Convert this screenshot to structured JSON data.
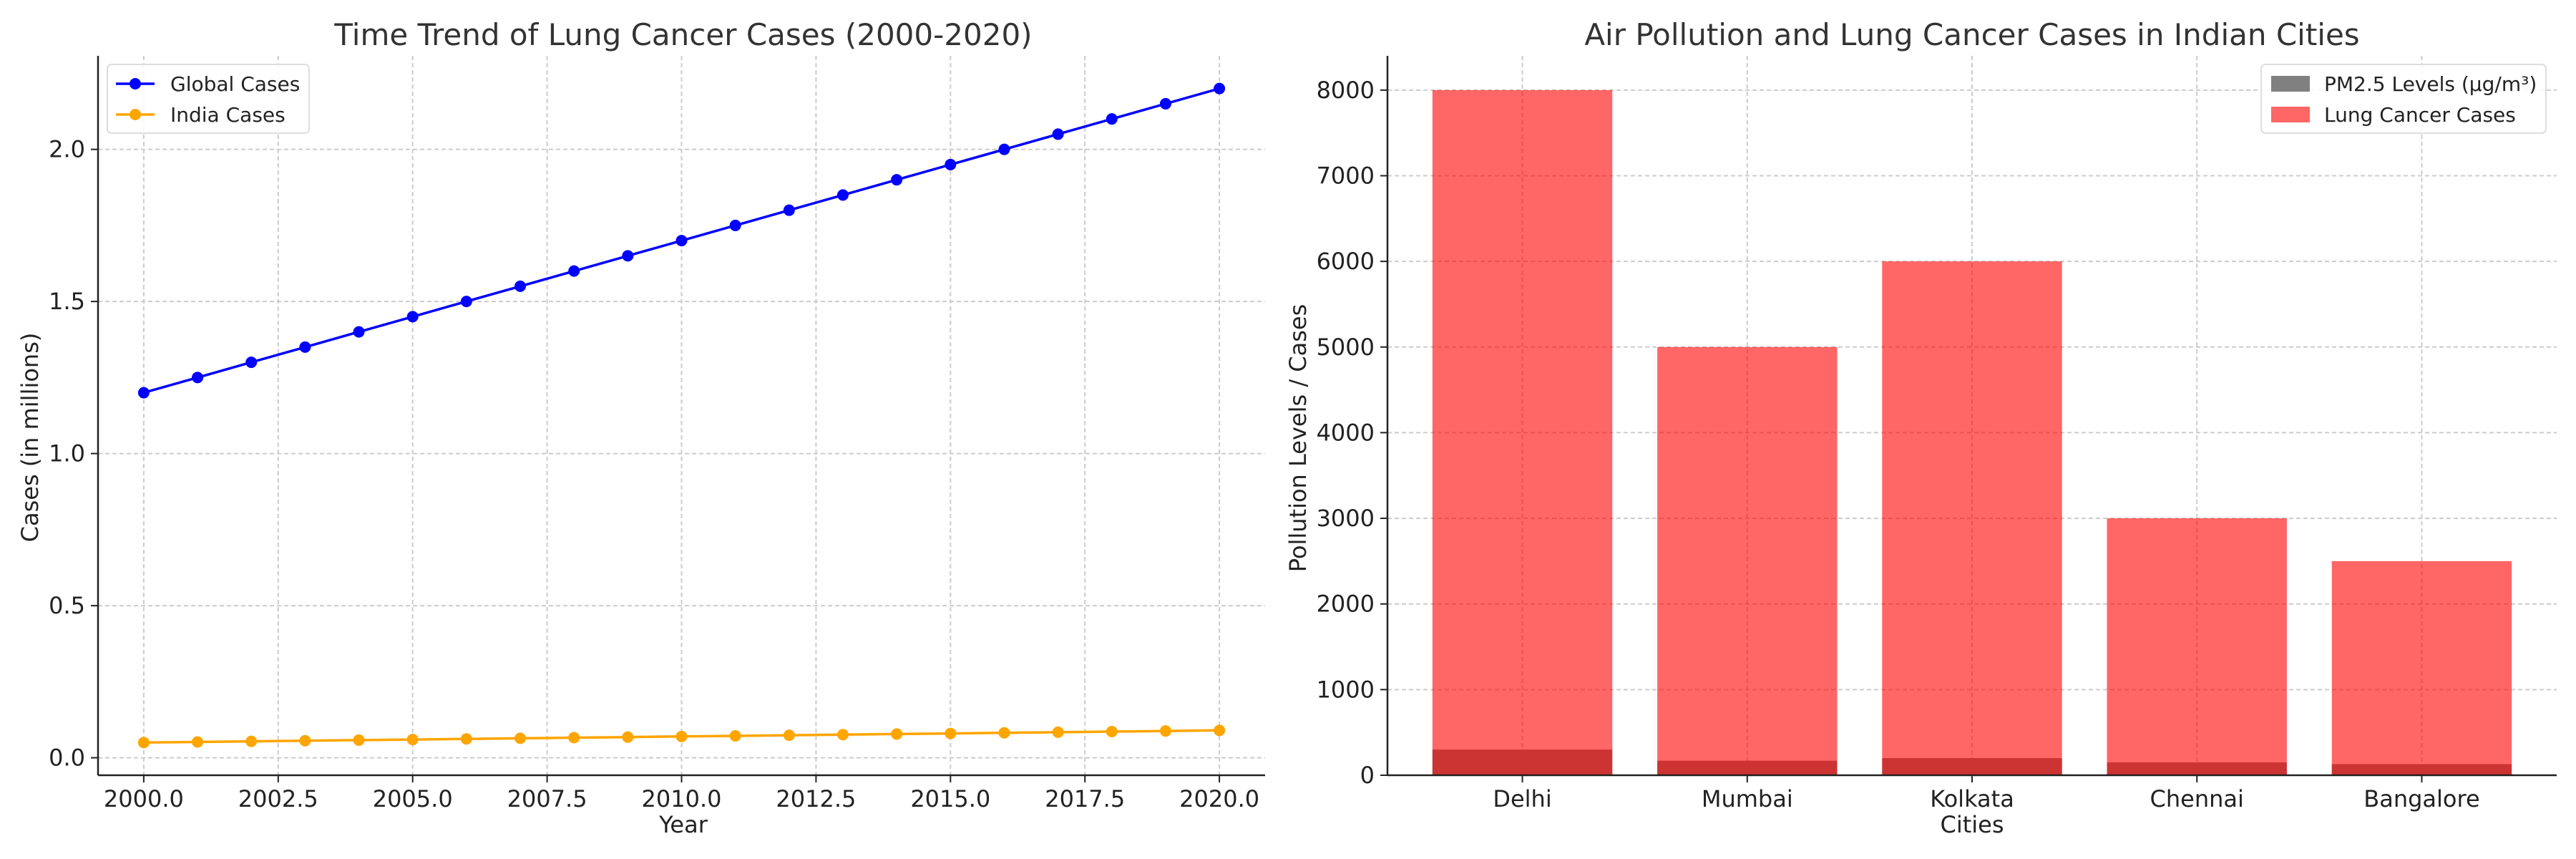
{
  "chart_data": [
    {
      "type": "line",
      "title": "Time Trend of Lung Cancer Cases (2000-2020)",
      "xlabel": "Year",
      "ylabel": "Cases (in millions)",
      "x": [
        2000,
        2001,
        2002,
        2003,
        2004,
        2005,
        2006,
        2007,
        2008,
        2009,
        2010,
        2011,
        2012,
        2013,
        2014,
        2015,
        2016,
        2017,
        2018,
        2019,
        2020
      ],
      "xlim": [
        1999.15,
        2020.85
      ],
      "ylim": [
        -0.0575,
        2.3075
      ],
      "x_ticks": [
        2000,
        2002.5,
        2005,
        2007.5,
        2010,
        2012.5,
        2015,
        2017.5,
        2020
      ],
      "x_tick_labels": [
        "2000.0",
        "2002.5",
        "2005.0",
        "2007.5",
        "2010.0",
        "2012.5",
        "2015.0",
        "2017.5",
        "2020.0"
      ],
      "y_ticks": [
        0,
        0.5,
        1,
        1.5,
        2
      ],
      "y_tick_labels": [
        "0.0",
        "0.5",
        "1.0",
        "1.5",
        "2.0"
      ],
      "grid": true,
      "legend_position": "top-left",
      "series": [
        {
          "name": "Global Cases",
          "color": "#0000ff",
          "marker": "circle",
          "values": [
            1.2,
            1.25,
            1.3,
            1.35,
            1.4,
            1.45,
            1.5,
            1.55,
            1.6,
            1.65,
            1.7,
            1.75,
            1.8,
            1.85,
            1.9,
            1.95,
            2.0,
            2.05,
            2.1,
            2.15,
            2.2
          ]
        },
        {
          "name": "India Cases",
          "color": "#ffa500",
          "marker": "circle",
          "values": [
            0.05,
            0.052,
            0.054,
            0.056,
            0.058,
            0.06,
            0.062,
            0.064,
            0.066,
            0.068,
            0.07,
            0.072,
            0.074,
            0.076,
            0.078,
            0.08,
            0.082,
            0.084,
            0.086,
            0.088,
            0.09
          ]
        }
      ]
    },
    {
      "type": "bar",
      "title": "Air Pollution and Lung Cancer Cases in Indian Cities",
      "xlabel": "Cities",
      "ylabel": "Pollution Levels / Cases",
      "categories": [
        "Delhi",
        "Mumbai",
        "Kolkata",
        "Chennai",
        "Bangalore"
      ],
      "ylim": [
        0,
        8400
      ],
      "y_ticks": [
        0,
        1000,
        2000,
        3000,
        4000,
        5000,
        6000,
        7000,
        8000
      ],
      "y_tick_labels": [
        "0",
        "1000",
        "2000",
        "3000",
        "4000",
        "5000",
        "6000",
        "7000",
        "8000"
      ],
      "grid": true,
      "legend_position": "top-right",
      "series": [
        {
          "name": "PM2.5 Levels (μg/m³)",
          "color": "#808080",
          "values": [
            300,
            170,
            200,
            150,
            130
          ]
        },
        {
          "name": "Lung Cancer Cases",
          "color": "#ff6666",
          "values": [
            8000,
            5000,
            6000,
            3000,
            2500
          ]
        }
      ]
    }
  ]
}
